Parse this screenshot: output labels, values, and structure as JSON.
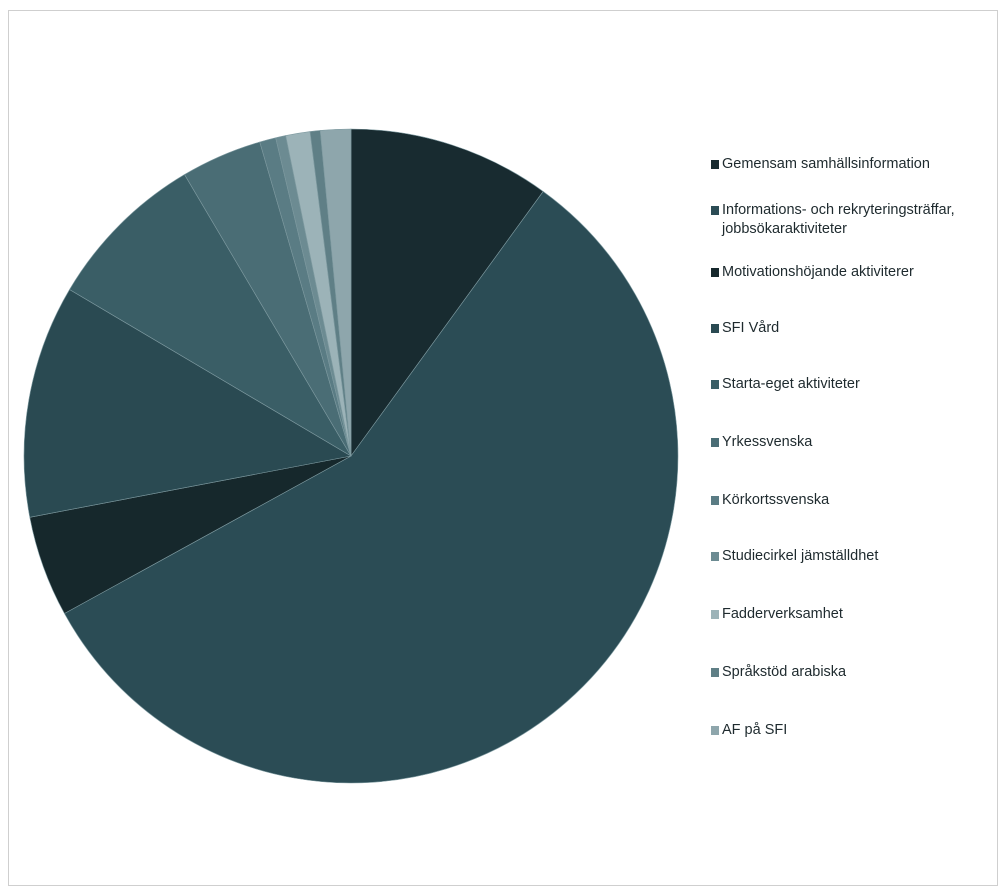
{
  "chart_data": {
    "type": "pie",
    "start_angle_deg": 0,
    "direction": "clockwise",
    "slices": [
      {
        "label": "Gemensam samhällsinformation",
        "value": 10.0,
        "color": "#182b30"
      },
      {
        "label": "Informations- och rekryteringsträffar,\njobbsökaraktiviteter",
        "value": 57.0,
        "color": "#2b4c55"
      },
      {
        "label": "Motivationshöjande aktiviterer",
        "value": 5.0,
        "color": "#16282c"
      },
      {
        "label": "SFI Vård",
        "value": 11.5,
        "color": "#2a4a52"
      },
      {
        "label": "Starta-eget aktiviteter",
        "value": 8.0,
        "color": "#3a5e66"
      },
      {
        "label": "Yrkessvenska",
        "value": 4.0,
        "color": "#4a6d75"
      },
      {
        "label": "Körkortssvenska",
        "value": 0.8,
        "color": "#5a7c84"
      },
      {
        "label": "Studiecirkel jämställdhet",
        "value": 0.5,
        "color": "#6c8b92"
      },
      {
        "label": "Fadderverksamhet",
        "value": 1.2,
        "color": "#9cb3b8"
      },
      {
        "label": "Språkstöd arabiska",
        "value": 0.5,
        "color": "#5f7f86"
      },
      {
        "label": "AF på SFI",
        "value": 1.5,
        "color": "#8ea6ac"
      }
    ]
  }
}
